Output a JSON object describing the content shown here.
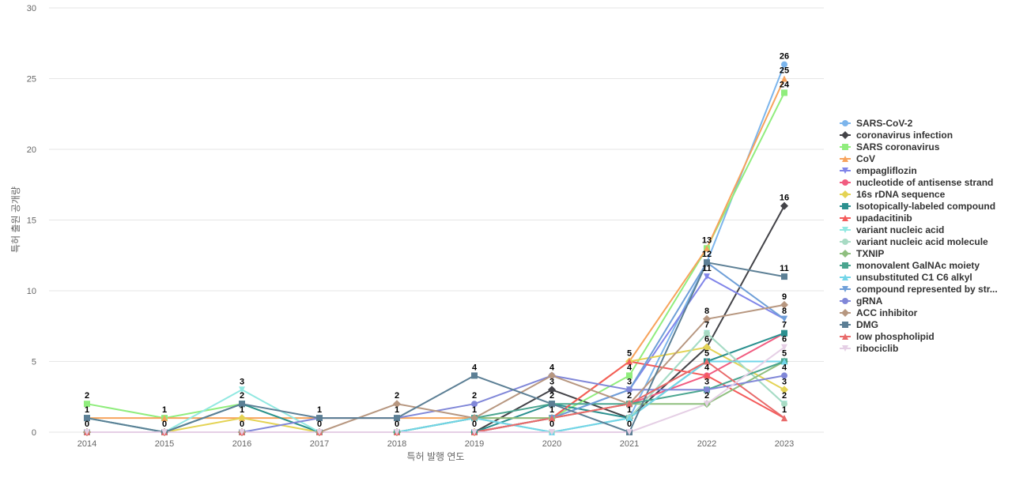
{
  "chart_data": {
    "type": "line",
    "title": "",
    "xlabel": "특허 발행 연도",
    "ylabel": "특허 출원 공개량",
    "ylim": [
      0,
      30
    ],
    "yticks": [
      0,
      5,
      10,
      15,
      20,
      25,
      30
    ],
    "grid": true,
    "legend_position": "right",
    "x": [
      "2014",
      "2015",
      "2016",
      "2017",
      "2018",
      "2019",
      "2020",
      "2021",
      "2022",
      "2023"
    ],
    "series": [
      {
        "name": "SARS-CoV-2",
        "color": "#7cb5ec",
        "marker": "circle",
        "values": [
          0,
          0,
          0,
          0,
          0,
          0,
          0,
          1,
          12,
          26
        ]
      },
      {
        "name": "coronavirus infection",
        "color": "#434348",
        "marker": "diamond",
        "values": [
          0,
          0,
          0,
          0,
          0,
          0,
          3,
          1,
          6,
          16
        ]
      },
      {
        "name": "SARS coronavirus",
        "color": "#90ed7d",
        "marker": "square",
        "values": [
          2,
          1,
          2,
          0,
          0,
          0,
          1,
          4,
          13,
          24
        ]
      },
      {
        "name": "CoV",
        "color": "#f7a35c",
        "marker": "triangle",
        "values": [
          1,
          1,
          1,
          1,
          1,
          1,
          1,
          5,
          13,
          25
        ]
      },
      {
        "name": "empagliflozin",
        "color": "#8085e9",
        "marker": "triangle-down",
        "values": [
          0,
          0,
          0,
          0,
          0,
          0,
          1,
          3,
          11,
          8
        ]
      },
      {
        "name": "nucleotide of antisense strand",
        "color": "#f15c80",
        "marker": "circle",
        "values": [
          0,
          0,
          0,
          0,
          0,
          0,
          1,
          2,
          4,
          7
        ]
      },
      {
        "name": "16s rDNA sequence",
        "color": "#e4d354",
        "marker": "diamond",
        "values": [
          0,
          0,
          1,
          0,
          0,
          0,
          1,
          5,
          6,
          3
        ]
      },
      {
        "name": "Isotopically-labeled compound",
        "color": "#2b908f",
        "marker": "square",
        "values": [
          1,
          0,
          2,
          0,
          0,
          0,
          2,
          1,
          5,
          7
        ]
      },
      {
        "name": "upadacitinib",
        "color": "#f45b5b",
        "marker": "triangle",
        "values": [
          0,
          0,
          0,
          0,
          0,
          0,
          1,
          5,
          4,
          1
        ]
      },
      {
        "name": "variant nucleic acid",
        "color": "#91e8e1",
        "marker": "triangle-down",
        "values": [
          1,
          0,
          3,
          0,
          0,
          1,
          0,
          1,
          7,
          2
        ]
      },
      {
        "name": "variant nucleic acid molecule",
        "color": "#a8dbc4",
        "marker": "circle",
        "values": [
          0,
          0,
          0,
          0,
          0,
          1,
          0,
          1,
          7,
          2
        ]
      },
      {
        "name": "TXNIP",
        "color": "#8fbf7f",
        "marker": "diamond",
        "values": [
          0,
          0,
          0,
          0,
          0,
          1,
          1,
          2,
          2,
          5
        ]
      },
      {
        "name": "monovalent GalNAc moiety",
        "color": "#4aa58f",
        "marker": "square",
        "values": [
          0,
          0,
          0,
          0,
          0,
          1,
          2,
          2,
          3,
          5
        ]
      },
      {
        "name": "unsubstituted C1 C6 alkyl",
        "color": "#72d5e8",
        "marker": "triangle",
        "values": [
          0,
          0,
          0,
          0,
          0,
          1,
          0,
          1,
          5,
          5
        ]
      },
      {
        "name": "compound represented by str...",
        "color": "#6f9fd8",
        "marker": "triangle-down",
        "values": [
          0,
          0,
          0,
          0,
          0,
          0,
          1,
          3,
          12,
          8
        ]
      },
      {
        "name": "gRNA",
        "color": "#8087d8",
        "marker": "circle",
        "values": [
          0,
          0,
          0,
          1,
          1,
          2,
          4,
          3,
          3,
          4
        ]
      },
      {
        "name": "ACC inhibitor",
        "color": "#b79780",
        "marker": "diamond",
        "values": [
          0,
          0,
          0,
          0,
          2,
          1,
          4,
          2,
          8,
          9
        ]
      },
      {
        "name": "DMG",
        "color": "#5c7f95",
        "marker": "square",
        "values": [
          1,
          0,
          2,
          1,
          1,
          4,
          2,
          0,
          12,
          11
        ]
      },
      {
        "name": "low phospholipid",
        "color": "#e86a6a",
        "marker": "triangle",
        "values": [
          0,
          0,
          0,
          0,
          0,
          0,
          1,
          2,
          5,
          1
        ]
      },
      {
        "name": "ribociclib",
        "color": "#e5cfe5",
        "marker": "triangle-down",
        "values": [
          0,
          0,
          0,
          0,
          0,
          0,
          0,
          0,
          2,
          6
        ]
      }
    ],
    "data_labels": [
      {
        "x": "2014",
        "value": "2"
      },
      {
        "x": "2014",
        "value": "1"
      },
      {
        "x": "2014",
        "value": "0"
      },
      {
        "x": "2015",
        "value": "1"
      },
      {
        "x": "2015",
        "value": "0"
      },
      {
        "x": "2016",
        "value": "3"
      },
      {
        "x": "2016",
        "value": "2"
      },
      {
        "x": "2016",
        "value": "1"
      },
      {
        "x": "2016",
        "value": "0"
      },
      {
        "x": "2017",
        "value": "1"
      },
      {
        "x": "2017",
        "value": "0"
      },
      {
        "x": "2018",
        "value": "2"
      },
      {
        "x": "2018",
        "value": "1"
      },
      {
        "x": "2018",
        "value": "0"
      },
      {
        "x": "2019",
        "value": "4"
      },
      {
        "x": "2019",
        "value": "2"
      },
      {
        "x": "2019",
        "value": "1"
      },
      {
        "x": "2019",
        "value": "0"
      },
      {
        "x": "2020",
        "value": "4"
      },
      {
        "x": "2020",
        "value": "3"
      },
      {
        "x": "2020",
        "value": "2"
      },
      {
        "x": "2020",
        "value": "1"
      },
      {
        "x": "2020",
        "value": "0"
      },
      {
        "x": "2021",
        "value": "5"
      },
      {
        "x": "2021",
        "value": "4"
      },
      {
        "x": "2021",
        "value": "3"
      },
      {
        "x": "2021",
        "value": "2"
      },
      {
        "x": "2021",
        "value": "1"
      },
      {
        "x": "2021",
        "value": "0"
      },
      {
        "x": "2022",
        "value": "13"
      },
      {
        "x": "2022",
        "value": "12"
      },
      {
        "x": "2022",
        "value": "11"
      },
      {
        "x": "2022",
        "value": "8"
      },
      {
        "x": "2022",
        "value": "7"
      },
      {
        "x": "2022",
        "value": "6"
      },
      {
        "x": "2022",
        "value": "5"
      },
      {
        "x": "2022",
        "value": "4"
      },
      {
        "x": "2022",
        "value": "3"
      },
      {
        "x": "2022",
        "value": "2"
      },
      {
        "x": "2023",
        "value": "26"
      },
      {
        "x": "2023",
        "value": "25"
      },
      {
        "x": "2023",
        "value": "24"
      },
      {
        "x": "2023",
        "value": "16"
      },
      {
        "x": "2023",
        "value": "11"
      },
      {
        "x": "2023",
        "value": "9"
      },
      {
        "x": "2023",
        "value": "8"
      },
      {
        "x": "2023",
        "value": "7"
      },
      {
        "x": "2023",
        "value": "6"
      },
      {
        "x": "2023",
        "value": "5"
      },
      {
        "x": "2023",
        "value": "4"
      },
      {
        "x": "2023",
        "value": "3"
      },
      {
        "x": "2023",
        "value": "2"
      },
      {
        "x": "2023",
        "value": "1"
      }
    ]
  }
}
